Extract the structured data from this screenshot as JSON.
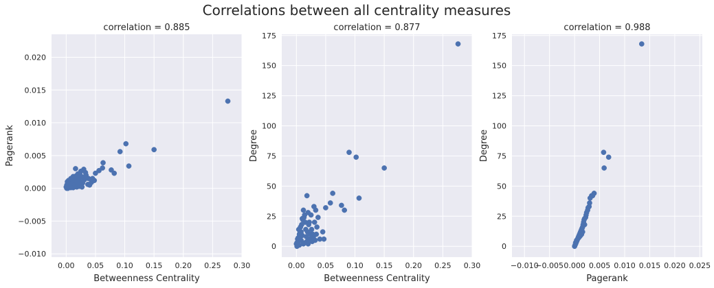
{
  "figure": {
    "suptitle": "Correlations between all centrality measures",
    "point_color": "#4c72b0",
    "panel_background": "#eaeaf2",
    "grid_color": "#ffffff"
  },
  "chart_data": [
    {
      "type": "scatter",
      "title": "correlation = 0.885",
      "xlabel": "Betweenness Centrality",
      "ylabel": "Pagerank",
      "xlim": [
        -0.025,
        0.3
      ],
      "ylim": [
        -0.0105,
        0.0235
      ],
      "grid": true,
      "xticks": [
        0.0,
        0.05,
        0.1,
        0.15,
        0.2,
        0.25,
        0.3
      ],
      "xtick_labels": [
        "0.00",
        "0.05",
        "0.10",
        "0.15",
        "0.20",
        "0.25",
        "0.30"
      ],
      "yticks": [
        -0.01,
        -0.005,
        0.0,
        0.005,
        0.01,
        0.015,
        0.02
      ],
      "ytick_labels": [
        "−0.010",
        "−0.005",
        "0.000",
        "0.005",
        "0.010",
        "0.015",
        "0.020"
      ],
      "x": [
        0.276,
        0.15,
        0.102,
        0.107,
        0.092,
        0.082,
        0.077,
        0.063,
        0.05,
        0.048,
        0.045,
        0.037,
        0.035,
        0.033,
        0.03,
        0.028,
        0.027,
        0.025,
        0.022,
        0.02,
        0.018,
        0.016,
        0.015,
        0.012,
        0.01,
        0.008,
        0.006,
        0.004,
        0.002,
        0.0,
        0.001,
        0.003,
        0.005,
        0.007,
        0.009,
        0.011,
        0.013,
        0.014,
        0.017,
        0.019,
        0.021,
        0.023,
        0.024,
        0.026,
        0.029,
        0.031,
        0.034,
        0.038,
        0.04,
        0.043,
        0.056,
        0.062,
        0.012,
        0.015,
        0.018,
        0.02,
        0.008,
        0.005,
        0.003,
        0.002,
        0.01,
        0.022,
        0.006,
        0.001
      ],
      "y": [
        0.0133,
        0.0059,
        0.0068,
        0.0034,
        0.0056,
        0.0023,
        0.0028,
        0.0039,
        0.0023,
        0.0012,
        0.0015,
        0.0006,
        0.0016,
        0.0024,
        0.0029,
        0.0008,
        0.0002,
        0.0026,
        0.0015,
        0.0022,
        0.0014,
        0.003,
        0.0009,
        0.0018,
        0.001,
        0.0015,
        0.0008,
        0.0012,
        0.0005,
        0.0002,
        0.0,
        0.0003,
        0.0004,
        0.0006,
        0.0003,
        0.0007,
        0.0011,
        0.0005,
        0.0019,
        0.0008,
        0.0012,
        0.0004,
        0.002,
        0.001,
        0.0017,
        0.0013,
        0.002,
        0.0015,
        0.0005,
        0.0009,
        0.0027,
        0.0031,
        0.0001,
        0.0004,
        0.0002,
        0.0006,
        0.0001,
        0.0002,
        0.0,
        0.001,
        0.0014,
        0.0003,
        0.0007,
        0.0005
      ]
    },
    {
      "type": "scatter",
      "title": "correlation = 0.877",
      "xlabel": "Betweenness Centrality",
      "ylabel": "Degree",
      "xlim": [
        -0.025,
        0.3
      ],
      "ylim": [
        -9,
        176
      ],
      "grid": true,
      "xticks": [
        0.0,
        0.05,
        0.1,
        0.15,
        0.2,
        0.25,
        0.3
      ],
      "xtick_labels": [
        "0.00",
        "0.05",
        "0.10",
        "0.15",
        "0.20",
        "0.25",
        "0.30"
      ],
      "yticks": [
        0,
        25,
        50,
        75,
        100,
        125,
        150,
        175
      ],
      "ytick_labels": [
        "0",
        "25",
        "50",
        "75",
        "100",
        "125",
        "150",
        "175"
      ],
      "x": [
        0.276,
        0.15,
        0.09,
        0.102,
        0.107,
        0.077,
        0.082,
        0.062,
        0.058,
        0.05,
        0.045,
        0.047,
        0.035,
        0.03,
        0.033,
        0.037,
        0.025,
        0.028,
        0.022,
        0.02,
        0.018,
        0.015,
        0.012,
        0.01,
        0.008,
        0.006,
        0.004,
        0.002,
        0.0,
        0.001,
        0.003,
        0.005,
        0.007,
        0.009,
        0.011,
        0.013,
        0.014,
        0.016,
        0.017,
        0.019,
        0.021,
        0.023,
        0.024,
        0.026,
        0.027,
        0.029,
        0.031,
        0.032,
        0.034,
        0.04,
        0.015,
        0.012,
        0.008,
        0.005,
        0.003,
        0.02,
        0.01,
        0.018,
        0.006,
        0.001
      ],
      "y": [
        168,
        65,
        78,
        74,
        40,
        34,
        30,
        44,
        36,
        32,
        12,
        6,
        16,
        33,
        30,
        24,
        26,
        10,
        20,
        28,
        42,
        20,
        30,
        23,
        12,
        8,
        14,
        6,
        2,
        0,
        4,
        10,
        16,
        18,
        22,
        24,
        26,
        14,
        8,
        12,
        18,
        6,
        10,
        14,
        4,
        8,
        20,
        5,
        10,
        6,
        3,
        2,
        5,
        1,
        7,
        2,
        9,
        4,
        11,
        3
      ]
    },
    {
      "type": "scatter",
      "title": "correlation = 0.988",
      "xlabel": "Pagerank",
      "ylabel": "Degree",
      "xlim": [
        -0.0125,
        0.0255
      ],
      "ylim": [
        -9,
        176
      ],
      "grid": true,
      "xticks": [
        -0.01,
        -0.005,
        0.0,
        0.005,
        0.01,
        0.015,
        0.02,
        0.025
      ],
      "xtick_labels": [
        "−0.010",
        "−0.005",
        "0.000",
        "0.005",
        "0.010",
        "0.015",
        "0.020",
        "0.025"
      ],
      "yticks": [
        0,
        25,
        50,
        75,
        100,
        125,
        150,
        175
      ],
      "ytick_labels": [
        "0",
        "25",
        "50",
        "75",
        "100",
        "125",
        "150",
        "175"
      ],
      "x": [
        0.0134,
        0.0058,
        0.0068,
        0.0059,
        0.0039,
        0.0034,
        0.0031,
        0.003,
        0.0029,
        0.0027,
        0.0026,
        0.0024,
        0.0023,
        0.0022,
        0.002,
        0.0019,
        0.0018,
        0.0017,
        0.0016,
        0.0015,
        0.0014,
        0.0013,
        0.0012,
        0.0011,
        0.001,
        0.0009,
        0.0008,
        0.0007,
        0.0006,
        0.0005,
        0.0004,
        0.0003,
        0.0002,
        0.0001,
        0.0,
        0.0002,
        0.0004,
        0.0006,
        0.0008,
        0.001,
        0.0012,
        0.0014,
        0.0016,
        0.002,
        0.0036
      ],
      "y": [
        168,
        78,
        74,
        65,
        44,
        42,
        40,
        36,
        33,
        32,
        30,
        28,
        26,
        24,
        23,
        22,
        20,
        18,
        16,
        15,
        14,
        13,
        12,
        11,
        10,
        9,
        8,
        7,
        6,
        5,
        4,
        3,
        2,
        1,
        0,
        3,
        5,
        6,
        7,
        8,
        9,
        10,
        12,
        18,
        42
      ]
    }
  ]
}
